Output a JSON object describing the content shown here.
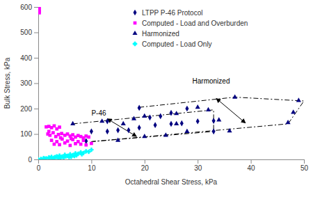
{
  "chart_data": {
    "type": "scatter",
    "x_label": "Octahedral Shear Stress, kPa",
    "y_label": "Bulk Stress, kPa",
    "xlim": [
      0,
      50
    ],
    "ylim": [
      0,
      600
    ],
    "xticks": [
      0,
      10,
      20,
      30,
      40,
      50
    ],
    "yticks": [
      0,
      100,
      200,
      300,
      400,
      500,
      600
    ],
    "legend": "upper right",
    "series": [
      {
        "name": "LTPP P-46 Protocol",
        "color": "#000080",
        "marker": "diamond",
        "x": [
          9,
          10,
          13,
          13,
          15,
          17,
          19,
          19,
          21,
          22,
          23,
          25,
          25,
          27,
          28,
          30,
          33,
          33
        ],
        "values": [
          72,
          110,
          110,
          150,
          115,
          115,
          125,
          203,
          165,
          135,
          170,
          140,
          183,
          142,
          200,
          150,
          152,
          110
        ]
      },
      {
        "name": "Computed - Load and Overburden",
        "color": "#ff00ff",
        "marker": "square",
        "x": [
          0.2,
          0.2,
          0.2,
          0.2,
          1.5,
          2,
          2.5,
          3,
          3.5,
          4,
          1.8,
          2.2,
          2.8,
          3.3,
          3.8,
          4.4,
          5,
          5.5,
          6,
          6.5,
          7,
          7.5,
          8,
          8.5,
          9,
          9.5,
          2.5,
          3.5,
          4.5,
          5.5,
          6.5,
          7.5,
          8.5,
          3,
          4,
          5,
          6,
          7,
          8,
          9,
          10,
          2,
          4.2,
          6.2
        ],
        "values": [
          600,
          590,
          583,
          577,
          128,
          130,
          125,
          132,
          120,
          127,
          100,
          95,
          105,
          90,
          98,
          102,
          95,
          100,
          92,
          97,
          88,
          94,
          90,
          85,
          92,
          88,
          75,
          70,
          80,
          72,
          78,
          70,
          75,
          60,
          58,
          65,
          55,
          62,
          60,
          57,
          63,
          110,
          85,
          82
        ]
      },
      {
        "name": "Harmonized",
        "color": "#000080",
        "marker": "triangle",
        "x": [
          6.5,
          12,
          15,
          16,
          18,
          20,
          20,
          24,
          26,
          26,
          28,
          30,
          32,
          34,
          36,
          37,
          47,
          48,
          49
        ],
        "values": [
          140,
          150,
          75,
          140,
          160,
          170,
          90,
          95,
          180,
          140,
          110,
          205,
          195,
          155,
          112,
          245,
          145,
          185,
          232
        ]
      },
      {
        "name": "Computed - Load Only",
        "color": "#00ffff",
        "marker": "cross",
        "x": [
          0,
          0.5,
          1,
          1.5,
          2,
          2.5,
          3,
          3.5,
          4,
          4.5,
          5,
          5.5,
          6,
          6.5,
          7,
          7.5,
          8,
          8.5,
          9,
          9.5,
          10,
          1.2,
          2.2,
          3.2,
          4.2,
          5.2,
          6.2,
          7.2,
          8.2,
          2.8,
          3.8,
          4.8,
          5.8,
          6.8
        ],
        "values": [
          0,
          2,
          5,
          4,
          8,
          10,
          7,
          12,
          15,
          11,
          18,
          14,
          20,
          17,
          24,
          22,
          28,
          25,
          32,
          30,
          38,
          3,
          6,
          9,
          5,
          12,
          10,
          16,
          20,
          2,
          4,
          7,
          9,
          13
        ]
      }
    ],
    "annotations": [
      {
        "text": "P-46",
        "x": 10,
        "y": 172,
        "points": [
          [
            6.5,
            140
          ],
          [
            33,
            195
          ],
          [
            33,
            110
          ],
          [
            10,
            70
          ]
        ],
        "arrow": [
          [
            13,
            160
          ],
          [
            18.5,
            90
          ]
        ]
      },
      {
        "text": "Harmonized",
        "x": 29,
        "y": 298,
        "points": [
          [
            19,
            205
          ],
          [
            37,
            245
          ],
          [
            50,
            230
          ],
          [
            47,
            140
          ],
          [
            10,
            70
          ]
        ],
        "arrow": [
          [
            33.5,
            240
          ],
          [
            39,
            143
          ]
        ]
      }
    ]
  }
}
